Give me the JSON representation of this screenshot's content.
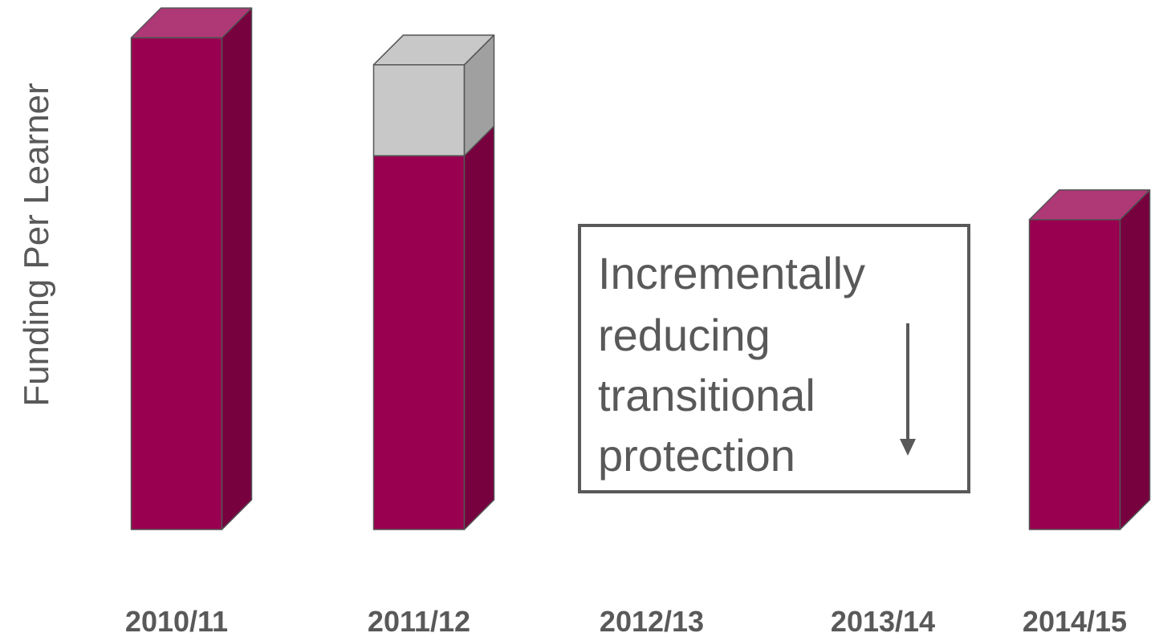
{
  "chart_data": {
    "type": "bar",
    "ylabel": "Funding Per Learner",
    "categories": [
      "2010/11",
      "2011/12",
      "2012/13",
      "2013/14",
      "2014/15"
    ],
    "series": [
      {
        "values": [
          100,
          76,
          null,
          null,
          63
        ],
        "color": "#990050"
      },
      {
        "values": [
          0,
          18.5,
          null,
          null,
          0
        ],
        "color": "#c8c8c8"
      }
    ],
    "ylim": [
      0,
      100
    ],
    "grid": false,
    "annotation": {
      "lines": [
        "Incrementally",
        "reducing",
        "transitional",
        "protection"
      ],
      "arrow": "down"
    }
  }
}
